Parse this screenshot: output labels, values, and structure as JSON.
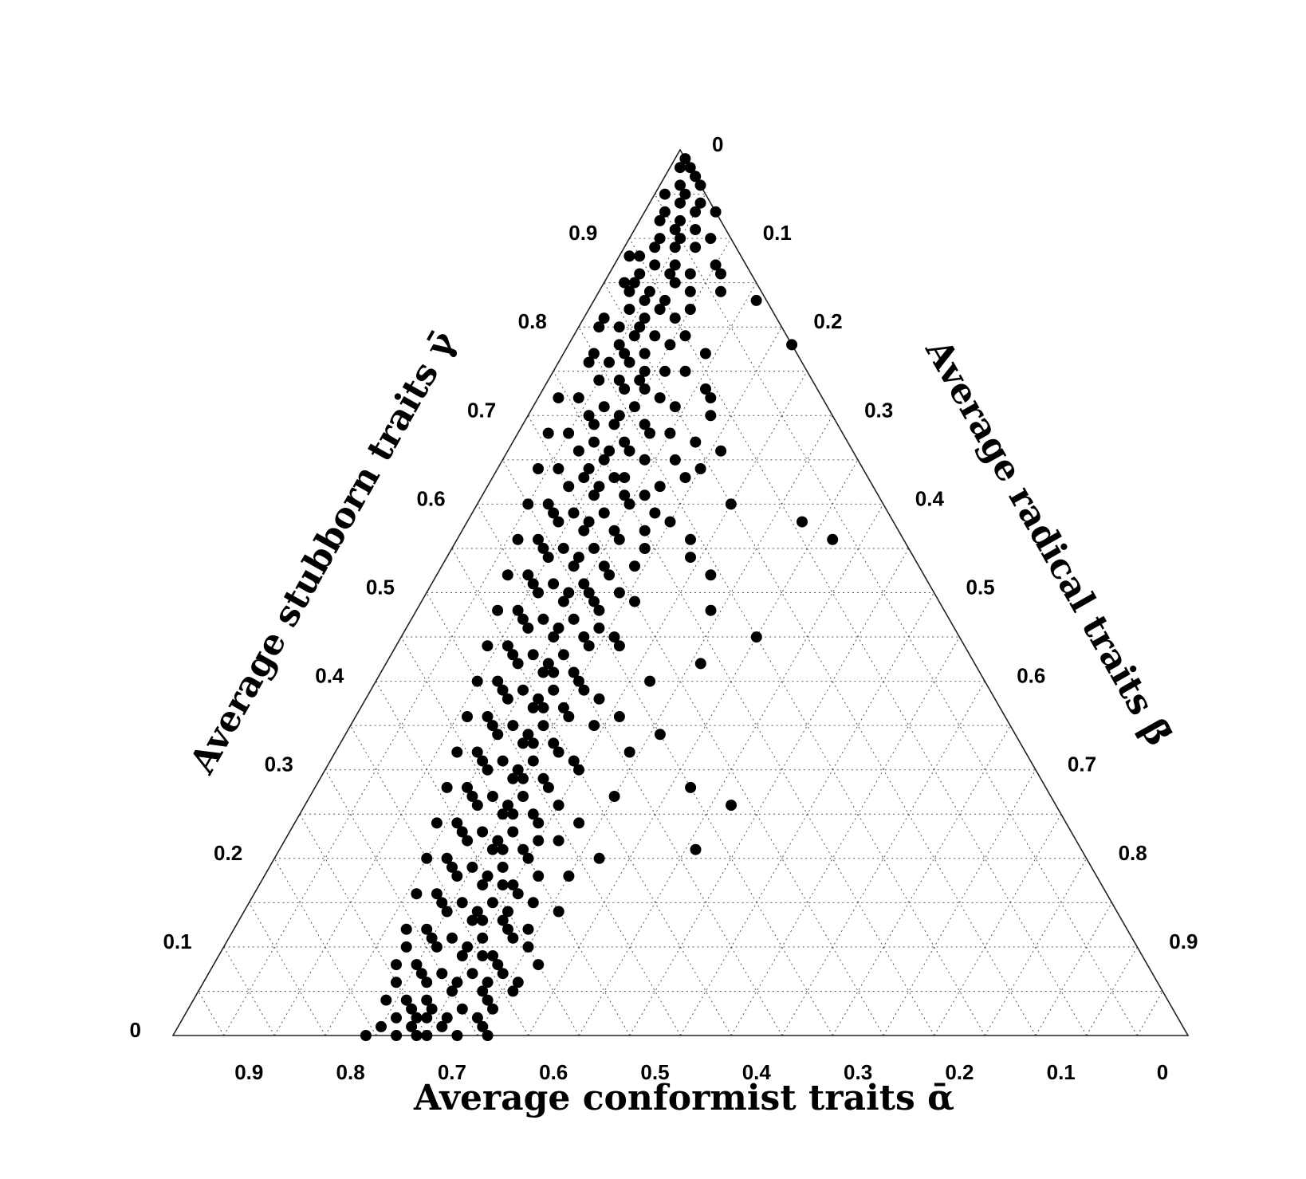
{
  "chart_data": {
    "type": "scatter",
    "subtype": "ternary",
    "axes": {
      "conformist": {
        "label": "Average conformist traits ᾱ",
        "ticks": [
          "0.9",
          "0.8",
          "0.7",
          "0.6",
          "0.5",
          "0.4",
          "0.3",
          "0.2",
          "0.1",
          "0"
        ]
      },
      "stubborn": {
        "label": "Average stubborn traits γ̄",
        "ticks": [
          "0",
          "0.1",
          "0.2",
          "0.3",
          "0.4",
          "0.5",
          "0.6",
          "0.7",
          "0.8",
          "0.9"
        ]
      },
      "radical": {
        "label": "Average radical traits β̄",
        "ticks": [
          "0",
          "0.1",
          "0.2",
          "0.3",
          "0.4",
          "0.5",
          "0.6",
          "0.7",
          "0.8",
          "0.9"
        ]
      }
    },
    "grid": true,
    "marker_color": "#000000",
    "points": [
      [
        0.99,
        0.02
      ],
      [
        0.97,
        0.03
      ],
      [
        0.96,
        0.04
      ],
      [
        0.95,
        0.03
      ],
      [
        0.94,
        0.05
      ],
      [
        0.93,
        0.02
      ],
      [
        0.92,
        0.04
      ],
      [
        0.91,
        0.06
      ],
      [
        0.9,
        0.03
      ],
      [
        0.89,
        0.05
      ],
      [
        0.88,
        0.02
      ],
      [
        0.87,
        0.04
      ],
      [
        0.86,
        0.06
      ],
      [
        0.85,
        0.03
      ],
      [
        0.84,
        0.05
      ],
      [
        0.83,
        0.07
      ],
      [
        0.82,
        0.04
      ],
      [
        0.81,
        0.02
      ],
      [
        0.8,
        0.06
      ],
      [
        0.79,
        0.08
      ],
      [
        0.78,
        0.05
      ],
      [
        0.77,
        0.03
      ],
      [
        0.76,
        0.07
      ],
      [
        0.75,
        0.09
      ],
      [
        0.74,
        0.05
      ],
      [
        0.73,
        0.08
      ],
      [
        0.72,
        0.04
      ],
      [
        0.71,
        0.1
      ],
      [
        0.7,
        0.06
      ],
      [
        0.69,
        0.09
      ],
      [
        0.68,
        0.05
      ],
      [
        0.67,
        0.11
      ],
      [
        0.66,
        0.07
      ],
      [
        0.65,
        0.1
      ],
      [
        0.64,
        0.06
      ],
      [
        0.63,
        0.12
      ],
      [
        0.62,
        0.08
      ],
      [
        0.61,
        0.11
      ],
      [
        0.6,
        0.07
      ],
      [
        0.59,
        0.13
      ],
      [
        0.58,
        0.09
      ],
      [
        0.57,
        0.12
      ],
      [
        0.56,
        0.08
      ],
      [
        0.55,
        0.14
      ],
      [
        0.54,
        0.1
      ],
      [
        0.53,
        0.13
      ],
      [
        0.52,
        0.09
      ],
      [
        0.51,
        0.15
      ],
      [
        0.5,
        0.11
      ],
      [
        0.49,
        0.14
      ],
      [
        0.48,
        0.1
      ],
      [
        0.47,
        0.16
      ],
      [
        0.46,
        0.12
      ],
      [
        0.45,
        0.15
      ],
      [
        0.44,
        0.11
      ],
      [
        0.43,
        0.17
      ],
      [
        0.42,
        0.13
      ],
      [
        0.41,
        0.16
      ],
      [
        0.4,
        0.12
      ],
      [
        0.39,
        0.18
      ],
      [
        0.38,
        0.14
      ],
      [
        0.37,
        0.17
      ],
      [
        0.36,
        0.13
      ],
      [
        0.35,
        0.19
      ],
      [
        0.34,
        0.15
      ],
      [
        0.33,
        0.18
      ],
      [
        0.32,
        0.14
      ],
      [
        0.31,
        0.2
      ],
      [
        0.3,
        0.16
      ],
      [
        0.29,
        0.19
      ],
      [
        0.28,
        0.15
      ],
      [
        0.27,
        0.21
      ],
      [
        0.26,
        0.17
      ],
      [
        0.25,
        0.2
      ],
      [
        0.24,
        0.16
      ],
      [
        0.23,
        0.22
      ],
      [
        0.22,
        0.18
      ],
      [
        0.21,
        0.21
      ],
      [
        0.2,
        0.17
      ],
      [
        0.19,
        0.23
      ],
      [
        0.18,
        0.19
      ],
      [
        0.17,
        0.22
      ],
      [
        0.16,
        0.18
      ],
      [
        0.15,
        0.24
      ],
      [
        0.14,
        0.2
      ],
      [
        0.13,
        0.23
      ],
      [
        0.12,
        0.19
      ],
      [
        0.11,
        0.25
      ],
      [
        0.1,
        0.21
      ],
      [
        0.09,
        0.24
      ],
      [
        0.08,
        0.2
      ],
      [
        0.07,
        0.26
      ],
      [
        0.06,
        0.22
      ],
      [
        0.05,
        0.25
      ],
      [
        0.04,
        0.21
      ],
      [
        0.03,
        0.27
      ],
      [
        0.02,
        0.23
      ],
      [
        0.01,
        0.26
      ],
      [
        0.0,
        0.22
      ],
      [
        0.0,
        0.25
      ],
      [
        0.98,
        0.04
      ],
      [
        0.96,
        0.02
      ],
      [
        0.94,
        0.03
      ],
      [
        0.93,
        0.05
      ],
      [
        0.91,
        0.04
      ],
      [
        0.89,
        0.03
      ],
      [
        0.87,
        0.06
      ],
      [
        0.86,
        0.03
      ],
      [
        0.84,
        0.03
      ],
      [
        0.83,
        0.05
      ],
      [
        0.82,
        0.07
      ],
      [
        0.8,
        0.04
      ],
      [
        0.79,
        0.06
      ],
      [
        0.77,
        0.08
      ],
      [
        0.76,
        0.05
      ],
      [
        0.74,
        0.07
      ],
      [
        0.73,
        0.1
      ],
      [
        0.71,
        0.07
      ],
      [
        0.7,
        0.09
      ],
      [
        0.69,
        0.12
      ],
      [
        0.67,
        0.08
      ],
      [
        0.66,
        0.1
      ],
      [
        0.64,
        0.09
      ],
      [
        0.63,
        0.09
      ],
      [
        0.62,
        0.11
      ],
      [
        0.61,
        0.14
      ],
      [
        0.59,
        0.1
      ],
      [
        0.58,
        0.12
      ],
      [
        0.57,
        0.15
      ],
      [
        0.55,
        0.11
      ],
      [
        0.54,
        0.13
      ],
      [
        0.53,
        0.16
      ],
      [
        0.51,
        0.12
      ],
      [
        0.5,
        0.14
      ],
      [
        0.49,
        0.17
      ],
      [
        0.47,
        0.13
      ],
      [
        0.46,
        0.15
      ],
      [
        0.45,
        0.18
      ],
      [
        0.43,
        0.14
      ],
      [
        0.42,
        0.16
      ],
      [
        0.41,
        0.19
      ],
      [
        0.39,
        0.15
      ],
      [
        0.38,
        0.17
      ],
      [
        0.37,
        0.2
      ],
      [
        0.35,
        0.16
      ],
      [
        0.34,
        0.18
      ],
      [
        0.33,
        0.21
      ],
      [
        0.31,
        0.17
      ],
      [
        0.3,
        0.19
      ],
      [
        0.29,
        0.22
      ],
      [
        0.27,
        0.18
      ],
      [
        0.26,
        0.2
      ],
      [
        0.25,
        0.23
      ],
      [
        0.23,
        0.19
      ],
      [
        0.22,
        0.21
      ],
      [
        0.21,
        0.24
      ],
      [
        0.19,
        0.2
      ],
      [
        0.18,
        0.22
      ],
      [
        0.17,
        0.25
      ],
      [
        0.15,
        0.21
      ],
      [
        0.14,
        0.23
      ],
      [
        0.13,
        0.26
      ],
      [
        0.11,
        0.22
      ],
      [
        0.1,
        0.24
      ],
      [
        0.09,
        0.27
      ],
      [
        0.07,
        0.23
      ],
      [
        0.06,
        0.25
      ],
      [
        0.05,
        0.28
      ],
      [
        0.03,
        0.24
      ],
      [
        0.02,
        0.26
      ],
      [
        0.85,
        0.07
      ],
      [
        0.81,
        0.09
      ],
      [
        0.78,
        0.1
      ],
      [
        0.72,
        0.12
      ],
      [
        0.68,
        0.13
      ],
      [
        0.65,
        0.14
      ],
      [
        0.6,
        0.15
      ],
      [
        0.56,
        0.16
      ],
      [
        0.52,
        0.17
      ],
      [
        0.48,
        0.18
      ],
      [
        0.44,
        0.19
      ],
      [
        0.4,
        0.2
      ],
      [
        0.36,
        0.21
      ],
      [
        0.32,
        0.22
      ],
      [
        0.28,
        0.23
      ],
      [
        0.24,
        0.24
      ],
      [
        0.2,
        0.25
      ],
      [
        0.16,
        0.26
      ],
      [
        0.12,
        0.27
      ],
      [
        0.08,
        0.28
      ],
      [
        0.04,
        0.29
      ],
      [
        0.01,
        0.3
      ],
      [
        0.9,
        0.08
      ],
      [
        0.75,
        0.11
      ],
      [
        0.62,
        0.17
      ],
      [
        0.58,
        0.2
      ],
      [
        0.5,
        0.19
      ],
      [
        0.45,
        0.21
      ],
      [
        0.38,
        0.23
      ],
      [
        0.3,
        0.25
      ],
      [
        0.22,
        0.27
      ],
      [
        0.15,
        0.28
      ],
      [
        0.1,
        0.3
      ],
      [
        0.06,
        0.31
      ],
      [
        0.03,
        0.3
      ],
      [
        0.0,
        0.28
      ],
      [
        0.0,
        0.31
      ],
      [
        0.02,
        0.29
      ],
      [
        0.05,
        0.31
      ],
      [
        0.12,
        0.29
      ],
      [
        0.87,
        0.1
      ],
      [
        0.83,
        0.16
      ],
      [
        0.78,
        0.26
      ],
      [
        0.58,
        0.33
      ],
      [
        0.56,
        0.37
      ],
      [
        0.45,
        0.35
      ],
      [
        0.28,
        0.37
      ],
      [
        0.26,
        0.42
      ],
      [
        0.21,
        0.41
      ],
      [
        0.84,
        0.09
      ],
      [
        0.66,
        0.21
      ],
      [
        0.6,
        0.25
      ],
      [
        0.52,
        0.27
      ],
      [
        0.48,
        0.29
      ],
      [
        0.42,
        0.31
      ],
      [
        0.34,
        0.31
      ],
      [
        0.27,
        0.3
      ],
      [
        0.2,
        0.32
      ],
      [
        0.7,
        0.18
      ],
      [
        0.64,
        0.2
      ],
      [
        0.56,
        0.23
      ],
      [
        0.4,
        0.27
      ],
      [
        0.32,
        0.29
      ],
      [
        0.18,
        0.3
      ],
      [
        0.73,
        0.16
      ],
      [
        0.54,
        0.24
      ],
      [
        0.36,
        0.26
      ],
      [
        0.24,
        0.28
      ],
      [
        0.14,
        0.31
      ],
      [
        0.08,
        0.32
      ],
      [
        0.98,
        0.01
      ],
      [
        0.95,
        0.01
      ],
      [
        0.92,
        0.02
      ],
      [
        0.88,
        0.01
      ],
      [
        0.85,
        0.02
      ],
      [
        0.8,
        0.02
      ],
      [
        0.76,
        0.03
      ],
      [
        0.72,
        0.02
      ],
      [
        0.68,
        0.03
      ],
      [
        0.64,
        0.04
      ],
      [
        0.6,
        0.05
      ],
      [
        0.56,
        0.06
      ],
      [
        0.52,
        0.07
      ],
      [
        0.48,
        0.08
      ],
      [
        0.44,
        0.09
      ],
      [
        0.4,
        0.1
      ],
      [
        0.36,
        0.11
      ],
      [
        0.32,
        0.12
      ],
      [
        0.28,
        0.13
      ],
      [
        0.24,
        0.14
      ],
      [
        0.2,
        0.15
      ],
      [
        0.16,
        0.16
      ],
      [
        0.12,
        0.17
      ],
      [
        0.08,
        0.18
      ],
      [
        0.04,
        0.19
      ],
      [
        0.01,
        0.2
      ],
      [
        0.0,
        0.19
      ],
      [
        0.02,
        0.21
      ],
      [
        0.06,
        0.19
      ],
      [
        0.1,
        0.18
      ],
      [
        0.97,
        0.05
      ],
      [
        0.9,
        0.05
      ],
      [
        0.86,
        0.08
      ],
      [
        0.81,
        0.06
      ],
      [
        0.77,
        0.06
      ],
      [
        0.74,
        0.09
      ],
      [
        0.69,
        0.07
      ],
      [
        0.66,
        0.12
      ],
      [
        0.63,
        0.13
      ],
      [
        0.59,
        0.08
      ],
      [
        0.55,
        0.09
      ],
      [
        0.51,
        0.1
      ],
      [
        0.47,
        0.11
      ],
      [
        0.43,
        0.12
      ],
      [
        0.39,
        0.13
      ],
      [
        0.35,
        0.14
      ],
      [
        0.31,
        0.15
      ],
      [
        0.27,
        0.16
      ],
      [
        0.23,
        0.17
      ],
      [
        0.19,
        0.18
      ],
      [
        0.15,
        0.19
      ],
      [
        0.11,
        0.2
      ],
      [
        0.07,
        0.21
      ],
      [
        0.03,
        0.22
      ],
      [
        0.01,
        0.23
      ],
      [
        0.0,
        0.24
      ],
      [
        0.02,
        0.24
      ],
      [
        0.04,
        0.23
      ],
      [
        0.06,
        0.28
      ],
      [
        0.09,
        0.26
      ],
      [
        0.13,
        0.24
      ],
      [
        0.17,
        0.24
      ],
      [
        0.21,
        0.22
      ],
      [
        0.25,
        0.21
      ],
      [
        0.29,
        0.2
      ],
      [
        0.33,
        0.19
      ],
      [
        0.37,
        0.18
      ],
      [
        0.41,
        0.17
      ],
      [
        0.46,
        0.19
      ],
      [
        0.5,
        0.16
      ],
      [
        0.53,
        0.19
      ],
      [
        0.57,
        0.18
      ],
      [
        0.61,
        0.16
      ],
      [
        0.65,
        0.17
      ],
      [
        0.68,
        0.15
      ],
      [
        0.71,
        0.14
      ],
      [
        0.75,
        0.13
      ],
      [
        0.79,
        0.11
      ],
      [
        0.82,
        0.1
      ],
      [
        0.86,
        0.11
      ],
      [
        0.93,
        0.07
      ],
      [
        0.89,
        0.07
      ],
      [
        0.84,
        0.12
      ],
      [
        0.77,
        0.14
      ],
      [
        0.72,
        0.17
      ],
      [
        0.67,
        0.18
      ],
      [
        0.63,
        0.19
      ],
      [
        0.59,
        0.18
      ],
      [
        0.55,
        0.19
      ],
      [
        0.49,
        0.21
      ],
      [
        0.44,
        0.22
      ],
      [
        0.39,
        0.21
      ],
      [
        0.35,
        0.24
      ],
      [
        0.31,
        0.24
      ],
      [
        0.26,
        0.25
      ],
      [
        0.22,
        0.25
      ],
      [
        0.18,
        0.27
      ],
      [
        0.14,
        0.26
      ],
      [
        0.11,
        0.28
      ],
      [
        0.07,
        0.29
      ]
    ]
  }
}
